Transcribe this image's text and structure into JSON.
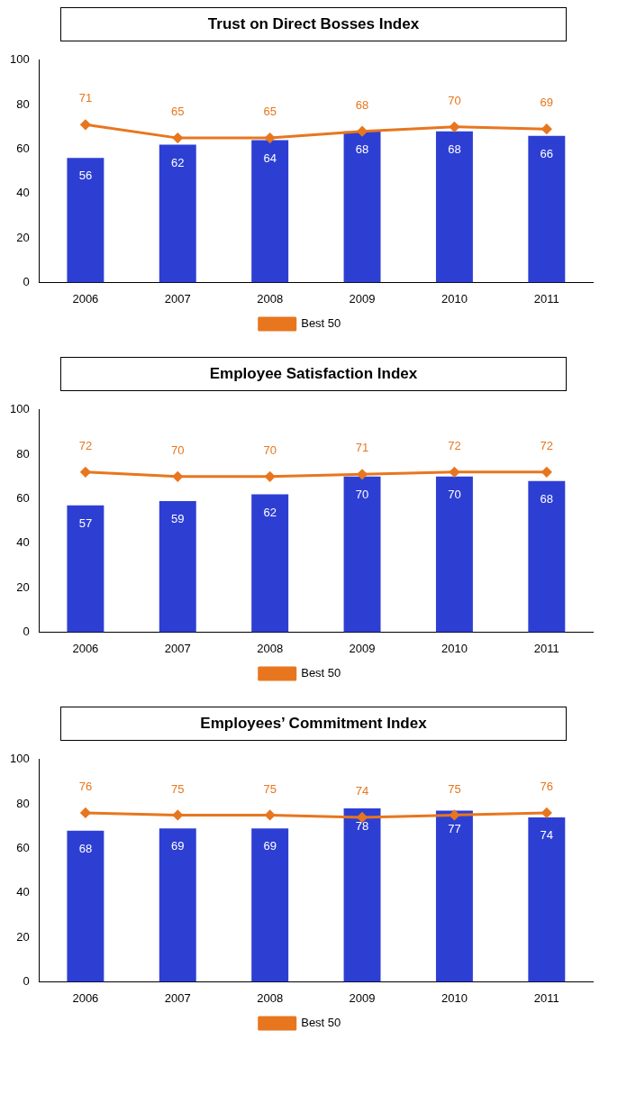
{
  "chart_data": [
    {
      "type": "bar",
      "title": "Trust on Direct Bosses Index",
      "categories": [
        "2006",
        "2007",
        "2008",
        "2009",
        "2010",
        "2011"
      ],
      "series": [
        {
          "color": "#2d3fd3",
          "values": [
            56,
            62,
            64,
            68,
            68,
            66
          ]
        },
        {
          "name": "Best 50",
          "type": "line",
          "color": "#e8761e",
          "marker": "diamond",
          "values": [
            71,
            65,
            65,
            68,
            70,
            69
          ]
        }
      ],
      "ylim": [
        0,
        100
      ],
      "yticks": [
        0,
        20,
        40,
        60,
        80,
        100
      ],
      "grid": false,
      "legend": "bottom",
      "data_labels": true
    },
    {
      "type": "bar",
      "title": "Employee Satisfaction Index",
      "categories": [
        "2006",
        "2007",
        "2008",
        "2009",
        "2010",
        "2011"
      ],
      "series": [
        {
          "color": "#2d3fd3",
          "values": [
            57,
            59,
            62,
            70,
            70,
            68
          ]
        },
        {
          "name": "Best 50",
          "type": "line",
          "color": "#e8761e",
          "marker": "diamond",
          "values": [
            72,
            70,
            70,
            71,
            72,
            72
          ]
        }
      ],
      "ylim": [
        0,
        100
      ],
      "yticks": [
        0,
        20,
        40,
        60,
        80,
        100
      ],
      "grid": false,
      "legend": "bottom",
      "data_labels": true
    },
    {
      "type": "bar",
      "title": "Employees’ Commitment Index",
      "categories": [
        "2006",
        "2007",
        "2008",
        "2009",
        "2010",
        "2011"
      ],
      "series": [
        {
          "color": "#2d3fd3",
          "values": [
            68,
            69,
            69,
            78,
            77,
            74
          ]
        },
        {
          "name": "Best 50",
          "type": "line",
          "color": "#e8761e",
          "marker": "diamond",
          "values": [
            76,
            75,
            75,
            74,
            75,
            76
          ]
        }
      ],
      "ylim": [
        0,
        100
      ],
      "yticks": [
        0,
        20,
        40,
        60,
        80,
        100
      ],
      "grid": false,
      "legend": "bottom",
      "data_labels": true
    }
  ]
}
